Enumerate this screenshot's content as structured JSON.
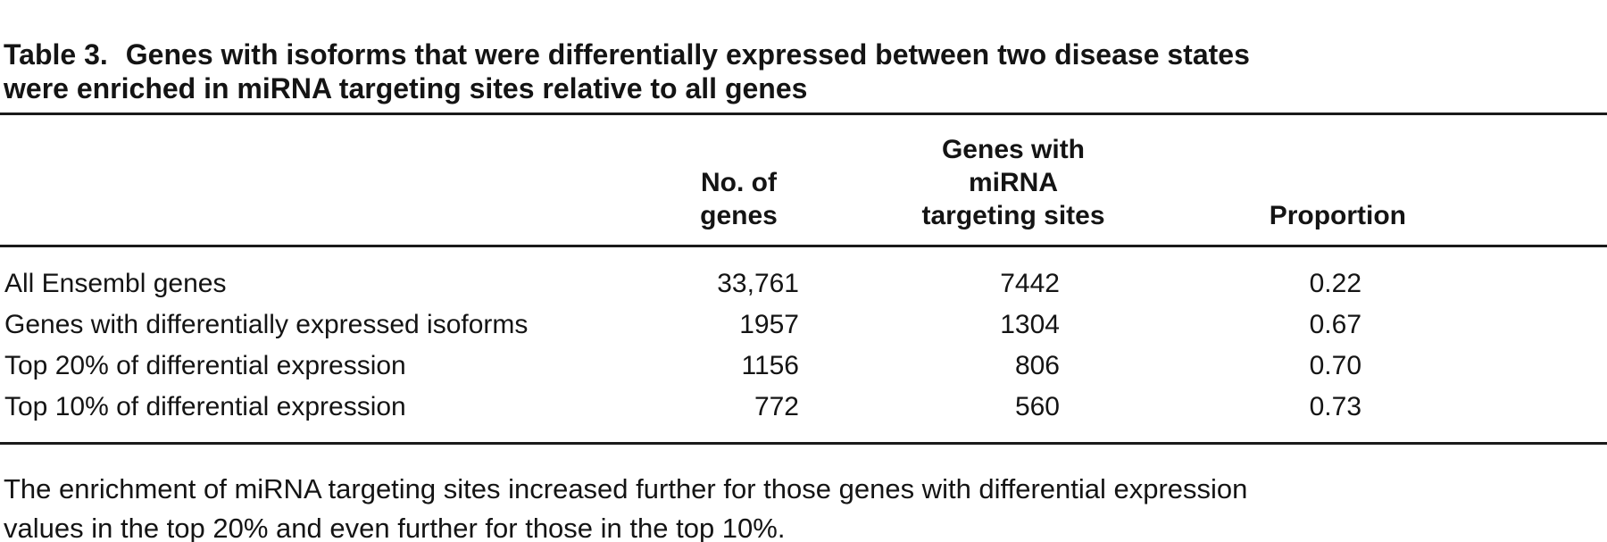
{
  "title": {
    "label": "Table 3.",
    "text": "Genes with isoforms that were differentially expressed between two disease states\nwere enriched in miRNA targeting sites relative to all genes"
  },
  "table": {
    "headers": {
      "no_of_genes": "No. of\ngenes",
      "mirna_sites": "Genes with miRNA\ntargeting sites",
      "proportion": "Proportion"
    },
    "rows": [
      {
        "label": "All Ensembl genes",
        "no_of_genes": "33,761",
        "genes_with_mirna_sites": "7442",
        "proportion": "0.22"
      },
      {
        "label": "Genes with differentially expressed isoforms",
        "no_of_genes": "1957",
        "genes_with_mirna_sites": "1304",
        "proportion": "0.67"
      },
      {
        "label": "Top 20% of differential expression",
        "no_of_genes": "1156",
        "genes_with_mirna_sites": "806",
        "proportion": "0.70"
      },
      {
        "label": "Top 10% of differential expression",
        "no_of_genes": "772",
        "genes_with_mirna_sites": "560",
        "proportion": "0.73"
      }
    ]
  },
  "footnote": "The enrichment of miRNA targeting sites increased further for those genes with differential expression\nvalues in the top 20% and even further for those in the top 10%."
}
